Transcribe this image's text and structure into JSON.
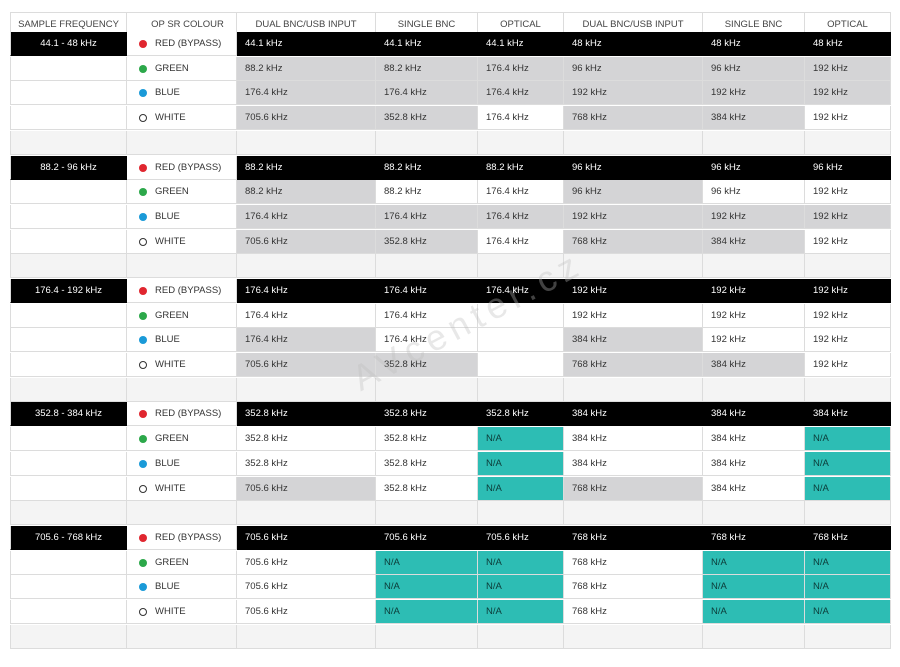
{
  "headers": [
    "SAMPLE FREQUENCY",
    "OP SR COLOUR",
    "DUAL BNC/USB INPUT",
    "SINGLE BNC",
    "OPTICAL",
    "DUAL BNC/USB INPUT",
    "SINGLE BNC",
    "OPTICAL"
  ],
  "colours": {
    "red": {
      "label": "RED (BYPASS)",
      "dot": "#e0262f"
    },
    "green": {
      "label": "GREEN",
      "dot": "#2ca84a"
    },
    "blue": {
      "label": "BLUE",
      "dot": "#1a9ad8"
    },
    "white": {
      "label": "WHITE",
      "dot": "#ffffff"
    }
  },
  "watermark": "AVcenter.cz",
  "groups": [
    {
      "freq": "44.1 - 48 kHz",
      "rows": [
        {
          "colour": "red",
          "cells": [
            [
              "44.1 kHz",
              "b"
            ],
            [
              "44.1 kHz",
              "b"
            ],
            [
              "44.1 kHz",
              "b"
            ],
            [
              "48 kHz",
              "b"
            ],
            [
              "48 kHz",
              "b"
            ],
            [
              "48 kHz",
              "b"
            ]
          ]
        },
        {
          "colour": "green",
          "cells": [
            [
              "88.2 kHz",
              "g"
            ],
            [
              "88.2 kHz",
              "g"
            ],
            [
              "176.4 kHz",
              "g"
            ],
            [
              "96 kHz",
              "g"
            ],
            [
              "96 kHz",
              "g"
            ],
            [
              "192 kHz",
              "g"
            ]
          ]
        },
        {
          "colour": "blue",
          "cells": [
            [
              "176.4 kHz",
              "g"
            ],
            [
              "176.4 kHz",
              "g"
            ],
            [
              "176.4 kHz",
              "g"
            ],
            [
              "192 kHz",
              "g"
            ],
            [
              "192 kHz",
              "g"
            ],
            [
              "192 kHz",
              "g"
            ]
          ]
        },
        {
          "colour": "white",
          "cells": [
            [
              "705.6 kHz",
              "g"
            ],
            [
              "352.8 kHz",
              "g"
            ],
            [
              "176.4 kHz",
              "w"
            ],
            [
              "768 kHz",
              "g"
            ],
            [
              "384 kHz",
              "g"
            ],
            [
              "192 kHz",
              "w"
            ]
          ]
        }
      ]
    },
    {
      "freq": "88.2 - 96 kHz",
      "rows": [
        {
          "colour": "red",
          "cells": [
            [
              "88.2 kHz",
              "b"
            ],
            [
              "88.2 kHz",
              "b"
            ],
            [
              "88.2 kHz",
              "b"
            ],
            [
              "96 kHz",
              "b"
            ],
            [
              "96 kHz",
              "b"
            ],
            [
              "96 kHz",
              "b"
            ]
          ]
        },
        {
          "colour": "green",
          "cells": [
            [
              "88.2 kHz",
              "g"
            ],
            [
              "88.2 kHz",
              "w"
            ],
            [
              "176.4 kHz",
              "w"
            ],
            [
              "96 kHz",
              "g"
            ],
            [
              "96 kHz",
              "w"
            ],
            [
              "192 kHz",
              "w"
            ]
          ]
        },
        {
          "colour": "blue",
          "cells": [
            [
              "176.4 kHz",
              "g"
            ],
            [
              "176.4 kHz",
              "g"
            ],
            [
              "176.4 kHz",
              "g"
            ],
            [
              "192 kHz",
              "g"
            ],
            [
              "192 kHz",
              "g"
            ],
            [
              "192 kHz",
              "g"
            ]
          ]
        },
        {
          "colour": "white",
          "cells": [
            [
              "705.6 kHz",
              "g"
            ],
            [
              "352.8 kHz",
              "g"
            ],
            [
              "176.4 kHz",
              "w"
            ],
            [
              "768 kHz",
              "g"
            ],
            [
              "384 kHz",
              "g"
            ],
            [
              "192 kHz",
              "w"
            ]
          ]
        }
      ]
    },
    {
      "freq": "176.4 - 192 kHz",
      "rows": [
        {
          "colour": "red",
          "cells": [
            [
              "176.4 kHz",
              "b"
            ],
            [
              "176.4 kHz",
              "b"
            ],
            [
              "176.4 kHz",
              "b"
            ],
            [
              "192 kHz",
              "b"
            ],
            [
              "192 kHz",
              "b"
            ],
            [
              "192 kHz",
              "b"
            ]
          ]
        },
        {
          "colour": "green",
          "cells": [
            [
              "176.4 kHz",
              "w"
            ],
            [
              "176.4 kHz",
              "w"
            ],
            [
              "",
              "w"
            ],
            [
              "192 kHz",
              "w"
            ],
            [
              "192 kHz",
              "w"
            ],
            [
              "192 kHz",
              "w"
            ]
          ]
        },
        {
          "colour": "blue",
          "cells": [
            [
              "176.4 kHz",
              "g"
            ],
            [
              "176.4 kHz",
              "w"
            ],
            [
              "",
              "w"
            ],
            [
              "384 kHz",
              "g"
            ],
            [
              "192 kHz",
              "w"
            ],
            [
              "192 kHz",
              "w"
            ]
          ]
        },
        {
          "colour": "white",
          "cells": [
            [
              "705.6 kHz",
              "g"
            ],
            [
              "352.8 kHz",
              "g"
            ],
            [
              "",
              "w"
            ],
            [
              "768 kHz",
              "g"
            ],
            [
              "384 kHz",
              "g"
            ],
            [
              "192 kHz",
              "w"
            ]
          ]
        }
      ]
    },
    {
      "freq": "352.8 - 384 kHz",
      "rows": [
        {
          "colour": "red",
          "cells": [
            [
              "352.8 kHz",
              "b"
            ],
            [
              "352.8 kHz",
              "b"
            ],
            [
              "352.8 kHz",
              "b"
            ],
            [
              "384 kHz",
              "b"
            ],
            [
              "384 kHz",
              "b"
            ],
            [
              "384 kHz",
              "b"
            ]
          ]
        },
        {
          "colour": "green",
          "cells": [
            [
              "352.8 kHz",
              "w"
            ],
            [
              "352.8 kHz",
              "w"
            ],
            [
              "N/A",
              "t"
            ],
            [
              "384 kHz",
              "w"
            ],
            [
              "384 kHz",
              "w"
            ],
            [
              "N/A",
              "t"
            ]
          ]
        },
        {
          "colour": "blue",
          "cells": [
            [
              "352.8 kHz",
              "w"
            ],
            [
              "352.8 kHz",
              "w"
            ],
            [
              "N/A",
              "t"
            ],
            [
              "384 kHz",
              "w"
            ],
            [
              "384 kHz",
              "w"
            ],
            [
              "N/A",
              "t"
            ]
          ]
        },
        {
          "colour": "white",
          "cells": [
            [
              "705.6 kHz",
              "g"
            ],
            [
              "352.8 kHz",
              "w"
            ],
            [
              "N/A",
              "t"
            ],
            [
              "768 kHz",
              "g"
            ],
            [
              "384 kHz",
              "w"
            ],
            [
              "N/A",
              "t"
            ]
          ]
        }
      ]
    },
    {
      "freq": "705.6 - 768 kHz",
      "rows": [
        {
          "colour": "red",
          "cells": [
            [
              "705.6 kHz",
              "b"
            ],
            [
              "705.6 kHz",
              "b"
            ],
            [
              "705.6 kHz",
              "b"
            ],
            [
              "768 kHz",
              "b"
            ],
            [
              "768 kHz",
              "b"
            ],
            [
              "768 kHz",
              "b"
            ]
          ]
        },
        {
          "colour": "green",
          "cells": [
            [
              "705.6 kHz",
              "w"
            ],
            [
              "N/A",
              "t"
            ],
            [
              "N/A",
              "t"
            ],
            [
              "768 kHz",
              "w"
            ],
            [
              "N/A",
              "t"
            ],
            [
              "N/A",
              "t"
            ]
          ]
        },
        {
          "colour": "blue",
          "cells": [
            [
              "705.6 kHz",
              "w"
            ],
            [
              "N/A",
              "t"
            ],
            [
              "N/A",
              "t"
            ],
            [
              "768 kHz",
              "w"
            ],
            [
              "N/A",
              "t"
            ],
            [
              "N/A",
              "t"
            ]
          ]
        },
        {
          "colour": "white",
          "cells": [
            [
              "705.6 kHz",
              "w"
            ],
            [
              "N/A",
              "t"
            ],
            [
              "N/A",
              "t"
            ],
            [
              "768 kHz",
              "w"
            ],
            [
              "N/A",
              "t"
            ],
            [
              "N/A",
              "t"
            ]
          ]
        }
      ]
    }
  ]
}
